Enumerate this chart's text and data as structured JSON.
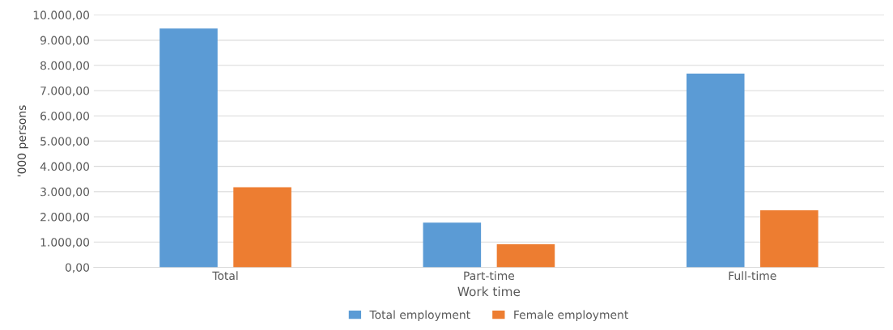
{
  "chart_data": {
    "type": "bar",
    "xlabel": "Work time",
    "ylabel": "'000 persons",
    "categories": [
      "Total",
      "Part-time",
      "Full-time"
    ],
    "series": [
      {
        "name": "Total employment",
        "color": "#5b9bd5",
        "values": [
          9460,
          1770,
          7670
        ]
      },
      {
        "name": "Female employment",
        "color": "#ed7d31",
        "values": [
          3170,
          910,
          2260
        ]
      }
    ],
    "ylim": [
      0,
      10000
    ],
    "yticks": [
      {
        "value": 0,
        "label": "0,00"
      },
      {
        "value": 1000,
        "label": "1.000,00"
      },
      {
        "value": 2000,
        "label": "2.000,00"
      },
      {
        "value": 3000,
        "label": "3.000,00"
      },
      {
        "value": 4000,
        "label": "4.000,00"
      },
      {
        "value": 5000,
        "label": "5.000,00"
      },
      {
        "value": 6000,
        "label": "6.000,00"
      },
      {
        "value": 7000,
        "label": "7.000,00"
      },
      {
        "value": 8000,
        "label": "8.000,00"
      },
      {
        "value": 9000,
        "label": "9.000,00"
      },
      {
        "value": 10000,
        "label": "10.000,00"
      }
    ],
    "grid": "y",
    "legend": "bottom"
  }
}
